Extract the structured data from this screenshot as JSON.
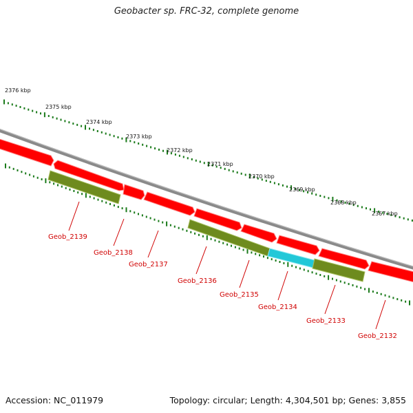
{
  "title": "Geobacter sp. FRC-32, complete genome",
  "footer": {
    "accession": "Accession: NC_011979",
    "stats": "Topology: circular; Length: 4,304,501 bp; Genes: 3,855"
  },
  "colors": {
    "backbone": "#8a8a8a",
    "cds_red": "#ff0000",
    "gene_olive": "#6e8b1e",
    "highlight_cyan": "#22c8d8",
    "tick_green": "#1a7a1a",
    "label_red": "#d00000"
  },
  "kbp_labels": [
    "2376 kbp",
    "2375 kbp",
    "2374 kbp",
    "2373 kbp",
    "2372 kbp",
    "2371 kbp",
    "2370 kbp",
    "2369 kbp",
    "2368 kbp",
    "2367 kbp"
  ],
  "loci": [
    "Geob_2139",
    "Geob_2138",
    "Geob_2137",
    "Geob_2136",
    "Geob_2135",
    "Geob_2134",
    "Geob_2133",
    "Geob_2132"
  ]
}
